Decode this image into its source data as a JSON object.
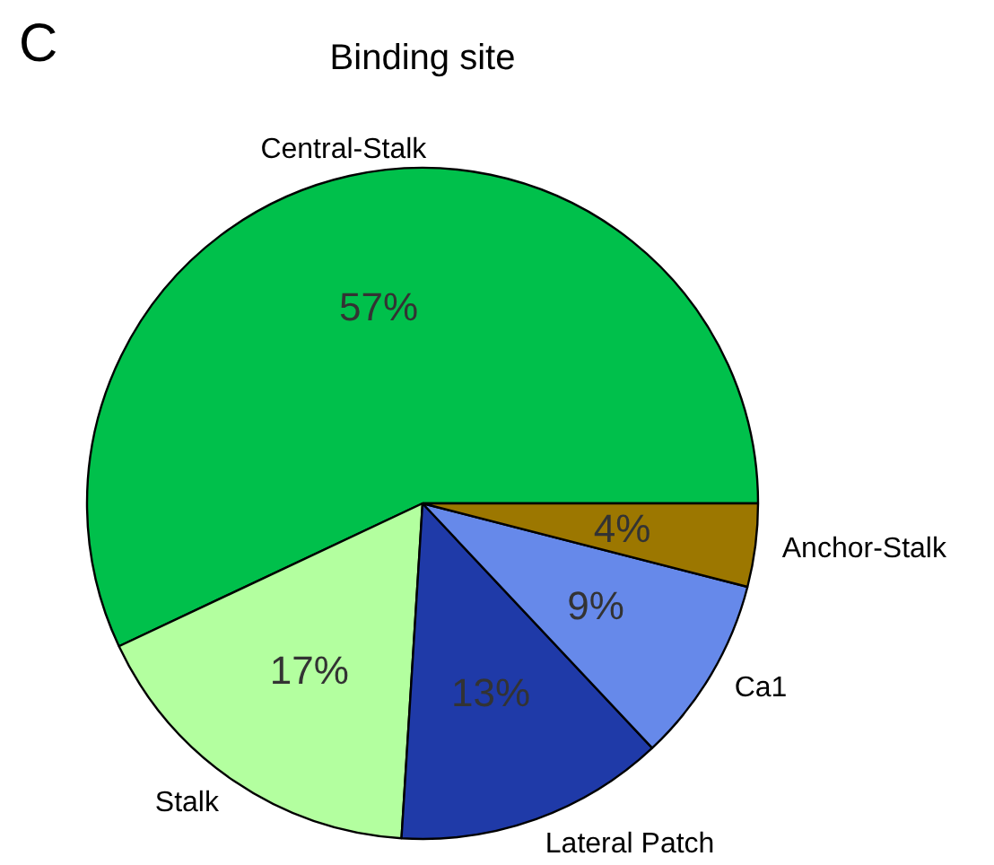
{
  "chart_data": {
    "type": "pie",
    "title": "Binding site",
    "annotations": [
      "C"
    ],
    "categories": [
      "Central-Stalk",
      "Stalk",
      "Lateral Patch",
      "Ca1",
      "Anchor-Stalk"
    ],
    "values": [
      57,
      17,
      13,
      9,
      4
    ],
    "colors": [
      "#00c04b",
      "#b3ff9f",
      "#1f3aa8",
      "#6689ea",
      "#9c7700"
    ],
    "value_labels": [
      "57%",
      "17%",
      "13%",
      "9%",
      "4%"
    ]
  }
}
